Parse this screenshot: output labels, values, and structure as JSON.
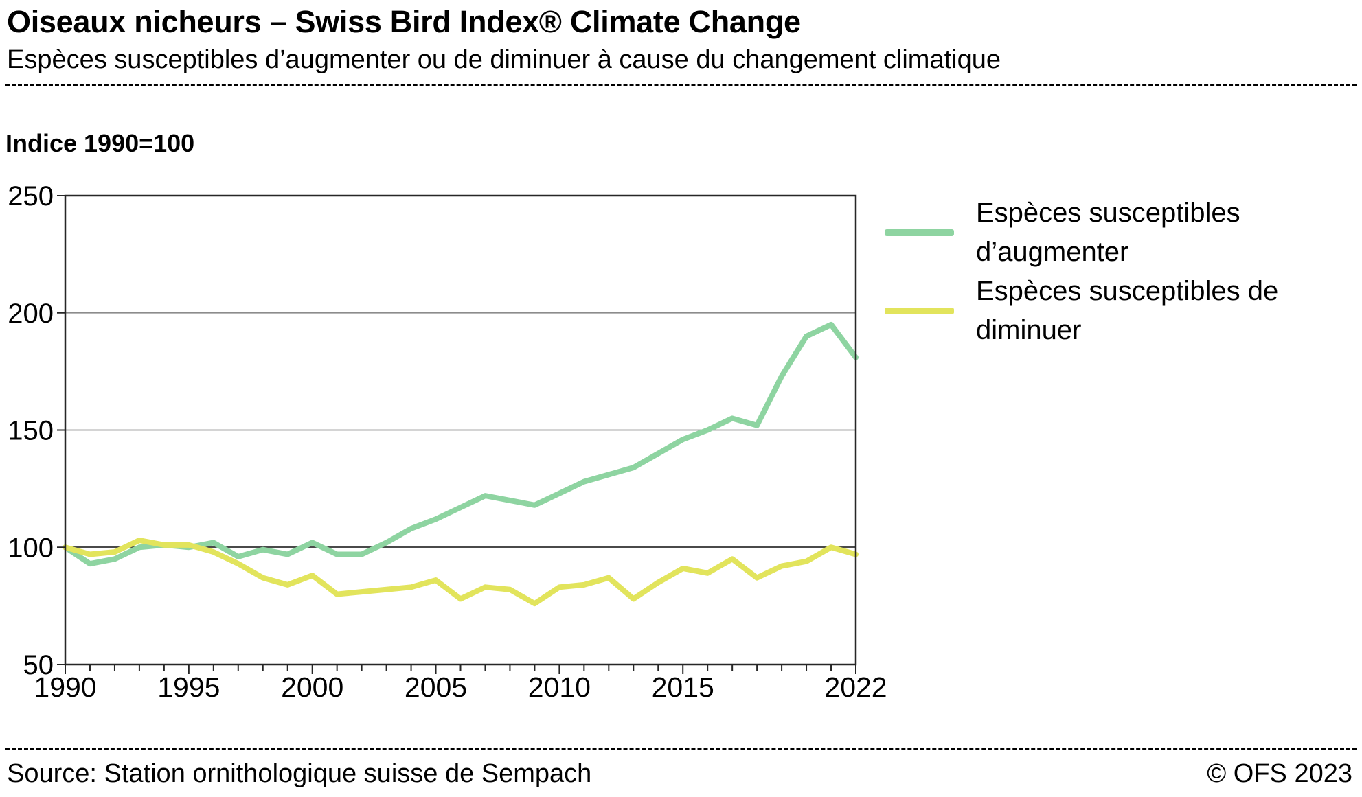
{
  "header": {
    "title": "Oiseaux nicheurs – Swiss Bird Index® Climate Change",
    "subtitle": "Espèces susceptibles d’augmenter ou de diminuer à cause du changement climatique"
  },
  "index_label": "Indice 1990=100",
  "colors": {
    "increase": "#8ed4a1",
    "decrease": "#e2e45c",
    "grid": "#8c8c8c",
    "baseline": "#4a4a4a",
    "frame": "#262626",
    "text": "#000000"
  },
  "chart_data": {
    "type": "line",
    "title": "Indice 1990=100",
    "xlabel": "",
    "ylabel": "Indice 1990=100",
    "x": [
      1990,
      1991,
      1992,
      1993,
      1994,
      1995,
      1996,
      1997,
      1998,
      1999,
      2000,
      2001,
      2002,
      2003,
      2004,
      2005,
      2006,
      2007,
      2008,
      2009,
      2010,
      2011,
      2012,
      2013,
      2014,
      2015,
      2016,
      2017,
      2018,
      2019,
      2020,
      2021,
      2022
    ],
    "xticks": [
      1990,
      1995,
      2000,
      2005,
      2010,
      2015,
      2022
    ],
    "yticks": [
      50,
      100,
      150,
      200,
      250
    ],
    "ylim": [
      50,
      250
    ],
    "baseline": 100,
    "grid": true,
    "legend_position": "right",
    "series": [
      {
        "key": "augmenter",
        "label": "Espèces susceptibles d’augmenter",
        "color_key": "increase",
        "values": [
          100,
          93,
          95,
          100,
          101,
          100,
          102,
          96,
          99,
          97,
          102,
          97,
          97,
          102,
          108,
          112,
          117,
          122,
          120,
          118,
          123,
          128,
          131,
          134,
          140,
          146,
          150,
          155,
          152,
          173,
          190,
          195,
          181
        ]
      },
      {
        "key": "diminuer",
        "label": "Espèces susceptibles de diminuer",
        "color_key": "decrease",
        "values": [
          100,
          97,
          98,
          103,
          101,
          101,
          98,
          93,
          87,
          84,
          88,
          80,
          81,
          82,
          83,
          86,
          78,
          83,
          82,
          76,
          83,
          84,
          87,
          78,
          85,
          91,
          89,
          95,
          87,
          92,
          94,
          100,
          97
        ]
      }
    ]
  },
  "footer": {
    "source": "Source: Station ornithologique suisse de Sempach",
    "copyright": "© OFS 2023"
  }
}
